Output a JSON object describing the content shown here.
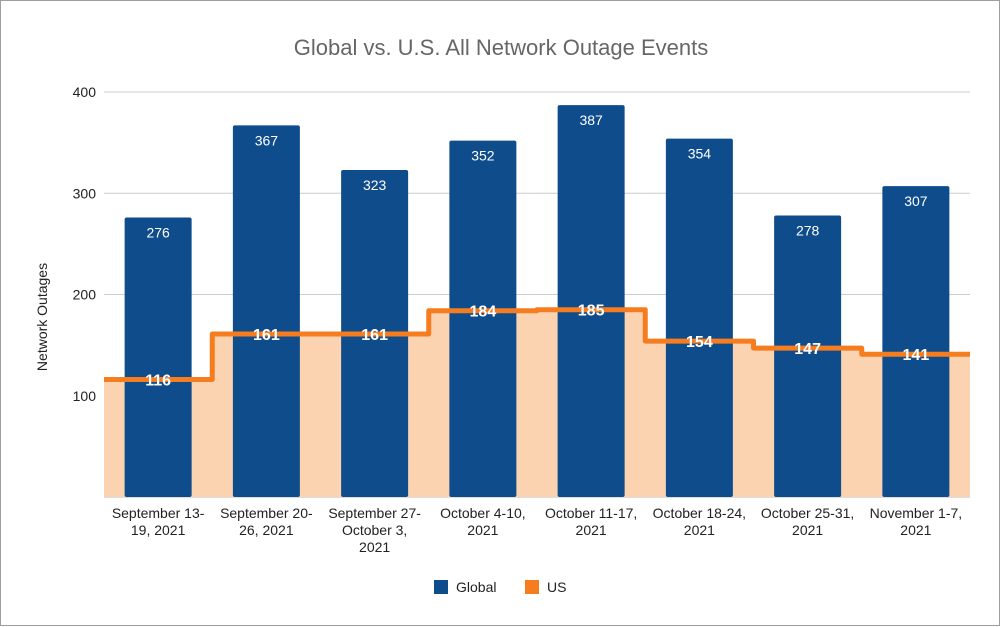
{
  "colors": {
    "global": "#0f4c8c",
    "us_line": "#f57c1f",
    "us_fill": "#fbd3b0",
    "grid": "#cccccc"
  },
  "chart_data": {
    "type": "bar",
    "title": "Global vs. U.S. All Network Outage Events",
    "xlabel": "",
    "ylabel": "Network Outages",
    "ylim": [
      0,
      400
    ],
    "yticks": [
      100,
      200,
      300,
      400
    ],
    "categories": [
      [
        "September 13-",
        "19, 2021"
      ],
      [
        "September 20-",
        "26, 2021"
      ],
      [
        "September 27-",
        "October 3,",
        "2021"
      ],
      [
        "October 4-10,",
        "2021"
      ],
      [
        "October 11-17,",
        "2021"
      ],
      [
        "October 18-24,",
        "2021"
      ],
      [
        "October 25-31,",
        "2021"
      ],
      [
        "November 1-7,",
        "2021"
      ]
    ],
    "series": [
      {
        "name": "Global",
        "type": "bar",
        "values": [
          276,
          367,
          323,
          352,
          387,
          354,
          278,
          307
        ]
      },
      {
        "name": "US",
        "type": "stepped-area",
        "values": [
          116,
          161,
          161,
          184,
          185,
          154,
          147,
          141
        ]
      }
    ],
    "legend": [
      "Global",
      "US"
    ],
    "legend_position": "bottom",
    "grid": true
  }
}
